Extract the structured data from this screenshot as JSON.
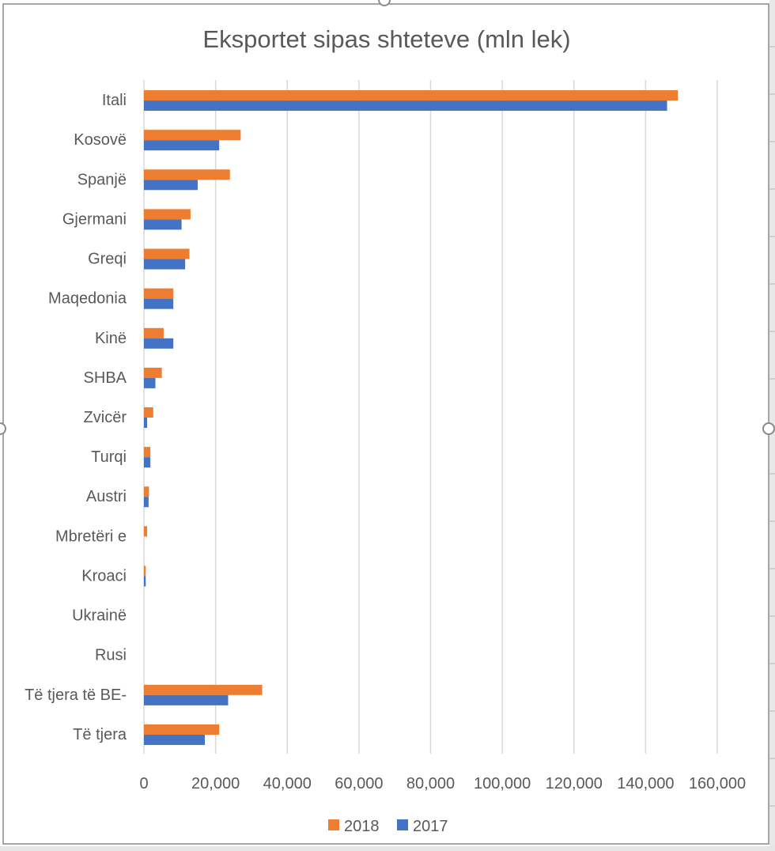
{
  "chart_data": {
    "type": "bar",
    "orientation": "horizontal",
    "title": "Eksportet sipas shteteve (mln lek)",
    "xlabel": "",
    "ylabel": "",
    "xlim": [
      0,
      160000
    ],
    "x_ticks": [
      0,
      20000,
      40000,
      60000,
      80000,
      100000,
      120000,
      140000,
      160000
    ],
    "x_tick_labels": [
      "0",
      "20,000",
      "40,000",
      "60,000",
      "80,000",
      "100,000",
      "120,000",
      "140,000",
      "160,000"
    ],
    "grid": "vertical",
    "legend_position": "bottom",
    "categories": [
      "Itali",
      "Kosovë",
      "Spanjë",
      "Gjermani",
      "Greqi",
      "Maqedonia",
      "Kinë",
      "SHBA",
      "Zvicër",
      "Turqi",
      "Austri",
      "Mbretëri e",
      "Kroaci",
      "Ukrainë",
      "Rusi",
      "Të tjera të BE-",
      "Të tjera"
    ],
    "series": [
      {
        "name": "2018",
        "color": "#ed7d31",
        "values": [
          149000,
          27000,
          24000,
          13000,
          12700,
          8200,
          5500,
          5000,
          2600,
          1800,
          1400,
          900,
          500,
          0,
          0,
          33000,
          21000
        ]
      },
      {
        "name": "2017",
        "color": "#4472c4",
        "values": [
          146000,
          21000,
          15000,
          10500,
          11500,
          8200,
          8200,
          3200,
          900,
          1800,
          1300,
          0,
          500,
          0,
          0,
          23500,
          17000
        ]
      }
    ]
  }
}
